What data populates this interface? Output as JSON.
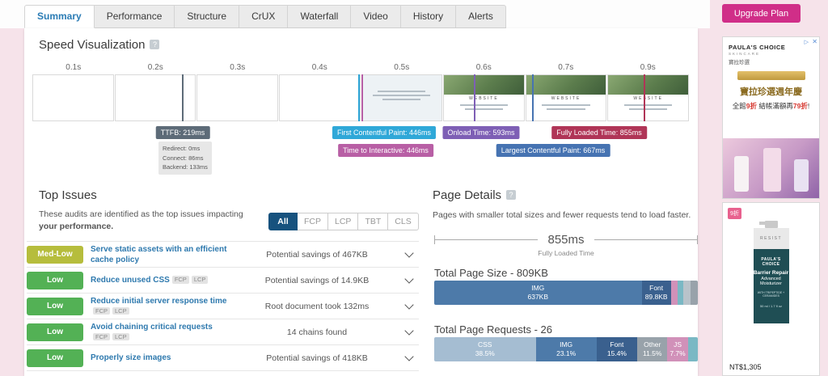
{
  "header": {
    "tabs": [
      {
        "label": "Summary"
      },
      {
        "label": "Performance"
      },
      {
        "label": "Structure"
      },
      {
        "label": "CrUX"
      },
      {
        "label": "Waterfall"
      },
      {
        "label": "Video"
      },
      {
        "label": "History"
      },
      {
        "label": "Alerts"
      }
    ],
    "upgrade_label": "Upgrade Plan"
  },
  "speed_viz": {
    "title": "Speed Visualization",
    "help": "?",
    "ticks": [
      "0.1s",
      "0.2s",
      "0.3s",
      "0.4s",
      "0.5s",
      "0.6s",
      "0.7s",
      "0.9s"
    ],
    "frame_site": "WEBSITE",
    "ttfb": {
      "label": "TTFB: 219ms",
      "redirect": "Redirect: 0ms",
      "connect": "Connect: 86ms",
      "backend": "Backend: 133ms",
      "color": "#5d6b78"
    },
    "fcp": {
      "label": "First Contentful Paint: 446ms",
      "color": "#2fa8d8"
    },
    "tti": {
      "label": "Time to Interactive: 446ms",
      "color": "#b85fa5"
    },
    "onload": {
      "label": "Onload Time: 593ms",
      "color": "#7e5fb5"
    },
    "fully": {
      "label": "Fully Loaded Time: 855ms",
      "color": "#b03557"
    },
    "lcp": {
      "label": "Largest Contentful Paint: 667ms",
      "color": "#4673b2"
    }
  },
  "top_issues": {
    "title": "Top Issues",
    "help": "?",
    "desc_1": "These audits are identified as the top issues impacting ",
    "desc_bold": "your performance.",
    "filters": [
      "All",
      "FCP",
      "LCP",
      "TBT",
      "CLS"
    ],
    "active_filter": "All",
    "issues": [
      {
        "severity": "Med-Low",
        "color": "#b6bd3c",
        "title": "Serve static assets with an efficient cache policy",
        "tags": [],
        "detail": "Potential savings of 467KB"
      },
      {
        "severity": "Low",
        "color": "#53b155",
        "title": "Reduce unused CSS",
        "tags": [
          "FCP",
          "LCP"
        ],
        "detail": "Potential savings of 14.9KB"
      },
      {
        "severity": "Low",
        "color": "#53b155",
        "title": "Reduce initial server response time",
        "tags": [
          "FCP",
          "LCP"
        ],
        "detail": "Root document took 132ms"
      },
      {
        "severity": "Low",
        "color": "#53b155",
        "title": "Avoid chaining critical requests",
        "tags": [
          "FCP",
          "LCP"
        ],
        "detail": "14 chains found"
      },
      {
        "severity": "Low",
        "color": "#53b155",
        "title": "Properly size images",
        "tags": [],
        "detail": "Potential savings of 418KB"
      }
    ]
  },
  "page_details": {
    "title": "Page Details",
    "help": "?",
    "desc": "Pages with smaller total sizes and fewer requests tend to load faster.",
    "fully_loaded_value": "855ms",
    "fully_loaded_label": "Fully Loaded Time",
    "size_title": "Total Page Size - 809KB",
    "size_segments": [
      {
        "label": "IMG",
        "value": "637KB",
        "pct": 78.7,
        "color": "#4d7aa9"
      },
      {
        "label": "Font",
        "value": "89.8KB",
        "pct": 11.1,
        "color": "#3a608e"
      },
      {
        "label": "",
        "value": "",
        "pct": 2.6,
        "color": "#d191b9"
      },
      {
        "label": "",
        "value": "",
        "pct": 2.2,
        "color": "#7ab8c4"
      },
      {
        "label": "",
        "value": "",
        "pct": 2.6,
        "color": "#b9c3ca"
      },
      {
        "label": "",
        "value": "",
        "pct": 2.8,
        "color": "#98a2aa"
      }
    ],
    "req_title": "Total Page Requests - 26",
    "req_segments": [
      {
        "label": "CSS",
        "value": "38.5%",
        "pct": 38.5,
        "color": "#a5bdd2"
      },
      {
        "label": "IMG",
        "value": "23.1%",
        "pct": 23.1,
        "color": "#4d7aa9"
      },
      {
        "label": "Font",
        "value": "15.4%",
        "pct": 15.4,
        "color": "#3a608e"
      },
      {
        "label": "Other",
        "value": "11.5%",
        "pct": 11.5,
        "color": "#98a2aa"
      },
      {
        "label": "JS",
        "value": "7.7%",
        "pct": 7.7,
        "color": "#d191b9"
      },
      {
        "label": "",
        "value": "",
        "pct": 3.8,
        "color": "#7ab8c4"
      }
    ]
  },
  "ads": {
    "close": "✕",
    "info": "▷",
    "top": {
      "brand": "PAULA'S CHOICE",
      "brand_sub": "SKINCARE",
      "brand_cn": "寶拉珍選",
      "line1": "寶拉珍選週年慶",
      "line2_pre": "全館",
      "line2_red1": "9折",
      "line2_mid": " 結帳滿額再",
      "line2_red2": "79折",
      "line2_end": "!"
    },
    "bottom": {
      "discount_badge": "9折",
      "bottle_top": "RESIST",
      "brand": "PAULA'S CHOICE",
      "name1": "Barrier Repair",
      "name2": "Advanced Moisturizer",
      "sub": "WITH TRIPEPTIDE + CERAMIDES",
      "size": "50 ml / 1.7 fl oz",
      "price": "NT$1,305"
    }
  }
}
